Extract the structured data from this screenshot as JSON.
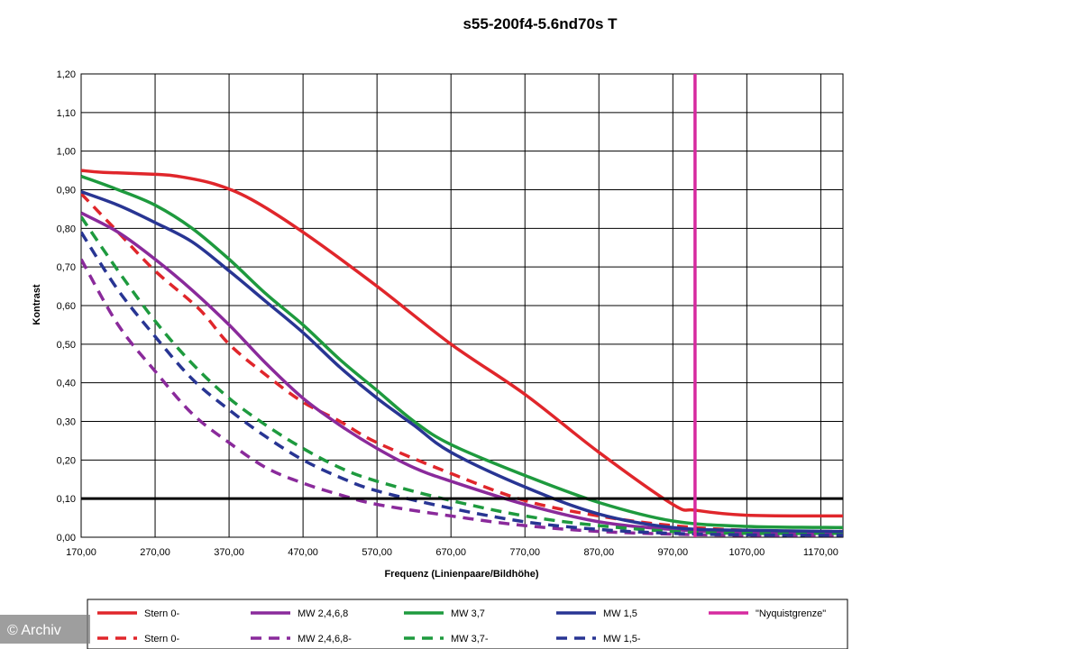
{
  "watermark": "© Archiv",
  "chart_data": {
    "type": "line",
    "title": "s55-200f4-5.6nd70s T",
    "xlabel": "Frequenz (Linienpaare/Bildhöhe)",
    "ylabel": "Kontrast",
    "xlim": [
      170,
      1200
    ],
    "ylim": [
      0,
      1.2
    ],
    "xticks": [
      "170,00",
      "270,00",
      "370,00",
      "470,00",
      "570,00",
      "670,00",
      "770,00",
      "870,00",
      "970,00",
      "1070,00",
      "1170,00"
    ],
    "xtick_values": [
      170,
      270,
      370,
      470,
      570,
      670,
      770,
      870,
      970,
      1070,
      1170
    ],
    "yticks": [
      "0,00",
      "0,10",
      "0,20",
      "0,30",
      "0,40",
      "0,50",
      "0,60",
      "0,70",
      "0,80",
      "0,90",
      "1,00",
      "1,10",
      "1,20"
    ],
    "ytick_values": [
      0,
      0.1,
      0.2,
      0.3,
      0.4,
      0.5,
      0.6,
      0.7,
      0.8,
      0.9,
      1.0,
      1.1,
      1.2
    ],
    "grid": true,
    "threshold": 0.1,
    "nyquist": 1000,
    "legend_position": "bottom",
    "series": [
      {
        "name": "Stern 0-",
        "color": "#e0262b",
        "dash": false,
        "x": [
          170,
          200,
          270,
          300,
          350,
          400,
          470,
          570,
          670,
          770,
          870,
          970,
          1000,
          1070,
          1200
        ],
        "y": [
          0.95,
          0.945,
          0.94,
          0.935,
          0.915,
          0.875,
          0.79,
          0.65,
          0.5,
          0.37,
          0.22,
          0.085,
          0.07,
          0.057,
          0.055
        ]
      },
      {
        "name": "Stern 0-",
        "color": "#e0262b",
        "dash": true,
        "x": [
          170,
          220,
          270,
          330,
          370,
          420,
          470,
          520,
          570,
          670,
          770,
          870,
          970,
          1070,
          1200
        ],
        "y": [
          0.89,
          0.79,
          0.69,
          0.59,
          0.5,
          0.42,
          0.35,
          0.3,
          0.245,
          0.165,
          0.095,
          0.055,
          0.03,
          0.018,
          0.015
        ]
      },
      {
        "name": "MW 2,4,6,8",
        "color": "#8a2a9b",
        "dash": false,
        "x": [
          170,
          220,
          270,
          320,
          370,
          420,
          470,
          520,
          570,
          620,
          670,
          770,
          870,
          970,
          1070,
          1200
        ],
        "y": [
          0.84,
          0.79,
          0.72,
          0.64,
          0.55,
          0.45,
          0.36,
          0.29,
          0.23,
          0.18,
          0.145,
          0.085,
          0.04,
          0.02,
          0.012,
          0.01
        ]
      },
      {
        "name": "MW 2,4,6,8-",
        "color": "#8a2a9b",
        "dash": true,
        "x": [
          170,
          220,
          270,
          320,
          370,
          420,
          470,
          520,
          570,
          670,
          770,
          870,
          970,
          1070,
          1200
        ],
        "y": [
          0.72,
          0.55,
          0.43,
          0.32,
          0.245,
          0.18,
          0.14,
          0.11,
          0.085,
          0.055,
          0.03,
          0.015,
          0.008,
          0.005,
          0.005
        ]
      },
      {
        "name": "MW 3,7",
        "color": "#1e9a3e",
        "dash": false,
        "x": [
          170,
          220,
          270,
          320,
          370,
          420,
          470,
          520,
          570,
          620,
          670,
          770,
          870,
          970,
          1070,
          1200
        ],
        "y": [
          0.935,
          0.9,
          0.86,
          0.8,
          0.72,
          0.63,
          0.55,
          0.46,
          0.38,
          0.3,
          0.24,
          0.16,
          0.09,
          0.042,
          0.028,
          0.025
        ]
      },
      {
        "name": "MW 3,7-",
        "color": "#1e9a3e",
        "dash": true,
        "x": [
          170,
          220,
          270,
          320,
          370,
          420,
          470,
          520,
          570,
          670,
          770,
          870,
          970,
          1070,
          1200
        ],
        "y": [
          0.83,
          0.69,
          0.56,
          0.45,
          0.36,
          0.29,
          0.23,
          0.18,
          0.145,
          0.095,
          0.055,
          0.03,
          0.015,
          0.01,
          0.01
        ]
      },
      {
        "name": "MW 1,5",
        "color": "#283593",
        "dash": false,
        "x": [
          170,
          220,
          270,
          320,
          370,
          420,
          470,
          520,
          570,
          620,
          670,
          770,
          870,
          970,
          1070,
          1200
        ],
        "y": [
          0.895,
          0.86,
          0.815,
          0.765,
          0.69,
          0.61,
          0.53,
          0.44,
          0.36,
          0.29,
          0.22,
          0.13,
          0.06,
          0.025,
          0.018,
          0.015
        ]
      },
      {
        "name": "MW 1,5-",
        "color": "#283593",
        "dash": true,
        "x": [
          170,
          220,
          270,
          320,
          370,
          420,
          470,
          520,
          570,
          670,
          770,
          870,
          970,
          1070,
          1200
        ],
        "y": [
          0.79,
          0.64,
          0.52,
          0.41,
          0.33,
          0.26,
          0.2,
          0.155,
          0.12,
          0.075,
          0.04,
          0.02,
          0.01,
          0.006,
          0.005
        ]
      }
    ],
    "legend": [
      {
        "label": "Stern 0-",
        "color": "#e0262b",
        "dash": false
      },
      {
        "label": "MW 2,4,6,8",
        "color": "#8a2a9b",
        "dash": false
      },
      {
        "label": "MW 3,7",
        "color": "#1e9a3e",
        "dash": false
      },
      {
        "label": "MW 1,5",
        "color": "#283593",
        "dash": false
      },
      {
        "label": "\"Nyquistgrenze\"",
        "color": "#d62a9f",
        "dash": false
      },
      {
        "label": "Stern 0-",
        "color": "#e0262b",
        "dash": true
      },
      {
        "label": "MW 2,4,6,8-",
        "color": "#8a2a9b",
        "dash": true
      },
      {
        "label": "MW 3,7-",
        "color": "#1e9a3e",
        "dash": true
      },
      {
        "label": "MW 1,5-",
        "color": "#283593",
        "dash": true
      }
    ]
  }
}
